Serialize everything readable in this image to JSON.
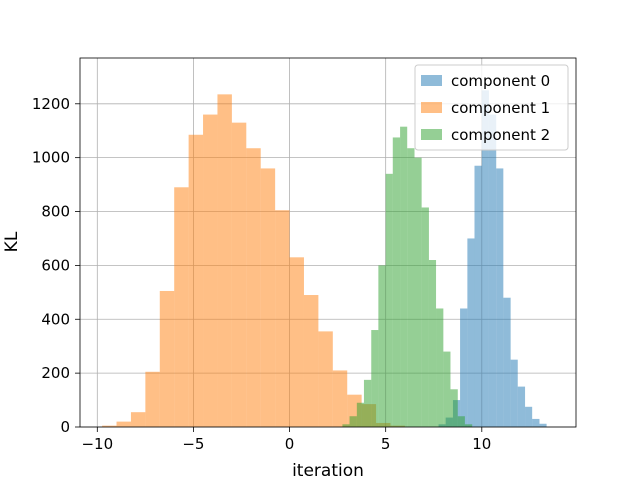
{
  "chart_data": {
    "type": "histogram",
    "title": "",
    "xlabel": "iteration",
    "ylabel": "KL",
    "xlim": [
      -10.9,
      14.9
    ],
    "ylim": [
      0,
      1370
    ],
    "x_ticks": [
      -10,
      -5,
      0,
      5,
      10
    ],
    "x_tick_labels": [
      "−10",
      "−5",
      "0",
      "5",
      "10"
    ],
    "y_ticks": [
      0,
      200,
      400,
      600,
      800,
      1000,
      1200
    ],
    "y_tick_labels": [
      "0",
      "200",
      "400",
      "600",
      "800",
      "1000",
      "1200"
    ],
    "grid": true,
    "legend_position": "top-right",
    "series": [
      {
        "name": "component 0",
        "color": "#1f77b4",
        "alpha": 0.5,
        "bins": [
          {
            "x0": 7.75,
            "x1": 8.12,
            "count": 10
          },
          {
            "x0": 8.12,
            "x1": 8.5,
            "count": 35
          },
          {
            "x0": 8.5,
            "x1": 8.87,
            "count": 100
          },
          {
            "x0": 8.87,
            "x1": 9.25,
            "count": 440
          },
          {
            "x0": 9.25,
            "x1": 9.62,
            "count": 700
          },
          {
            "x0": 9.62,
            "x1": 10.0,
            "count": 970
          },
          {
            "x0": 10.0,
            "x1": 10.37,
            "count": 1250
          },
          {
            "x0": 10.37,
            "x1": 10.75,
            "count": 1160
          },
          {
            "x0": 10.75,
            "x1": 11.12,
            "count": 960
          },
          {
            "x0": 11.12,
            "x1": 11.5,
            "count": 480
          },
          {
            "x0": 11.5,
            "x1": 11.87,
            "count": 250
          },
          {
            "x0": 11.87,
            "x1": 12.25,
            "count": 150
          },
          {
            "x0": 12.25,
            "x1": 12.62,
            "count": 75
          },
          {
            "x0": 12.62,
            "x1": 13.0,
            "count": 30
          },
          {
            "x0": 13.0,
            "x1": 13.37,
            "count": 12
          }
        ]
      },
      {
        "name": "component 1",
        "color": "#ff7f0e",
        "alpha": 0.5,
        "bins": [
          {
            "x0": -9.75,
            "x1": -9.0,
            "count": 5
          },
          {
            "x0": -9.0,
            "x1": -8.25,
            "count": 20
          },
          {
            "x0": -8.25,
            "x1": -7.5,
            "count": 55
          },
          {
            "x0": -7.5,
            "x1": -6.75,
            "count": 205
          },
          {
            "x0": -6.75,
            "x1": -6.0,
            "count": 505
          },
          {
            "x0": -6.0,
            "x1": -5.25,
            "count": 890
          },
          {
            "x0": -5.25,
            "x1": -4.5,
            "count": 1085
          },
          {
            "x0": -4.5,
            "x1": -3.75,
            "count": 1160
          },
          {
            "x0": -3.75,
            "x1": -3.0,
            "count": 1235
          },
          {
            "x0": -3.0,
            "x1": -2.25,
            "count": 1130
          },
          {
            "x0": -2.25,
            "x1": -1.5,
            "count": 1035
          },
          {
            "x0": -1.5,
            "x1": -0.75,
            "count": 960
          },
          {
            "x0": -0.75,
            "x1": 0.0,
            "count": 805
          },
          {
            "x0": 0.0,
            "x1": 0.75,
            "count": 630
          },
          {
            "x0": 0.75,
            "x1": 1.5,
            "count": 490
          },
          {
            "x0": 1.5,
            "x1": 2.25,
            "count": 355
          },
          {
            "x0": 2.25,
            "x1": 3.0,
            "count": 210
          },
          {
            "x0": 3.0,
            "x1": 3.75,
            "count": 120
          },
          {
            "x0": 3.75,
            "x1": 4.5,
            "count": 85
          },
          {
            "x0": 4.5,
            "x1": 5.25,
            "count": 15
          },
          {
            "x0": 5.25,
            "x1": 6.0,
            "count": 5
          }
        ]
      },
      {
        "name": "component 2",
        "color": "#2ca02c",
        "alpha": 0.5,
        "bins": [
          {
            "x0": 2.75,
            "x1": 3.12,
            "count": 10
          },
          {
            "x0": 3.12,
            "x1": 3.5,
            "count": 40
          },
          {
            "x0": 3.5,
            "x1": 3.87,
            "count": 90
          },
          {
            "x0": 3.87,
            "x1": 4.25,
            "count": 175
          },
          {
            "x0": 4.25,
            "x1": 4.62,
            "count": 360
          },
          {
            "x0": 4.62,
            "x1": 5.0,
            "count": 600
          },
          {
            "x0": 5.0,
            "x1": 5.37,
            "count": 940
          },
          {
            "x0": 5.37,
            "x1": 5.75,
            "count": 1075
          },
          {
            "x0": 5.75,
            "x1": 6.12,
            "count": 1115
          },
          {
            "x0": 6.12,
            "x1": 6.5,
            "count": 1035
          },
          {
            "x0": 6.5,
            "x1": 6.87,
            "count": 1000
          },
          {
            "x0": 6.87,
            "x1": 7.25,
            "count": 815
          },
          {
            "x0": 7.25,
            "x1": 7.62,
            "count": 620
          },
          {
            "x0": 7.62,
            "x1": 8.0,
            "count": 440
          },
          {
            "x0": 8.0,
            "x1": 8.37,
            "count": 280
          },
          {
            "x0": 8.37,
            "x1": 8.75,
            "count": 140
          },
          {
            "x0": 8.75,
            "x1": 9.12,
            "count": 40
          },
          {
            "x0": 9.12,
            "x1": 9.5,
            "count": 10
          }
        ]
      }
    ]
  }
}
